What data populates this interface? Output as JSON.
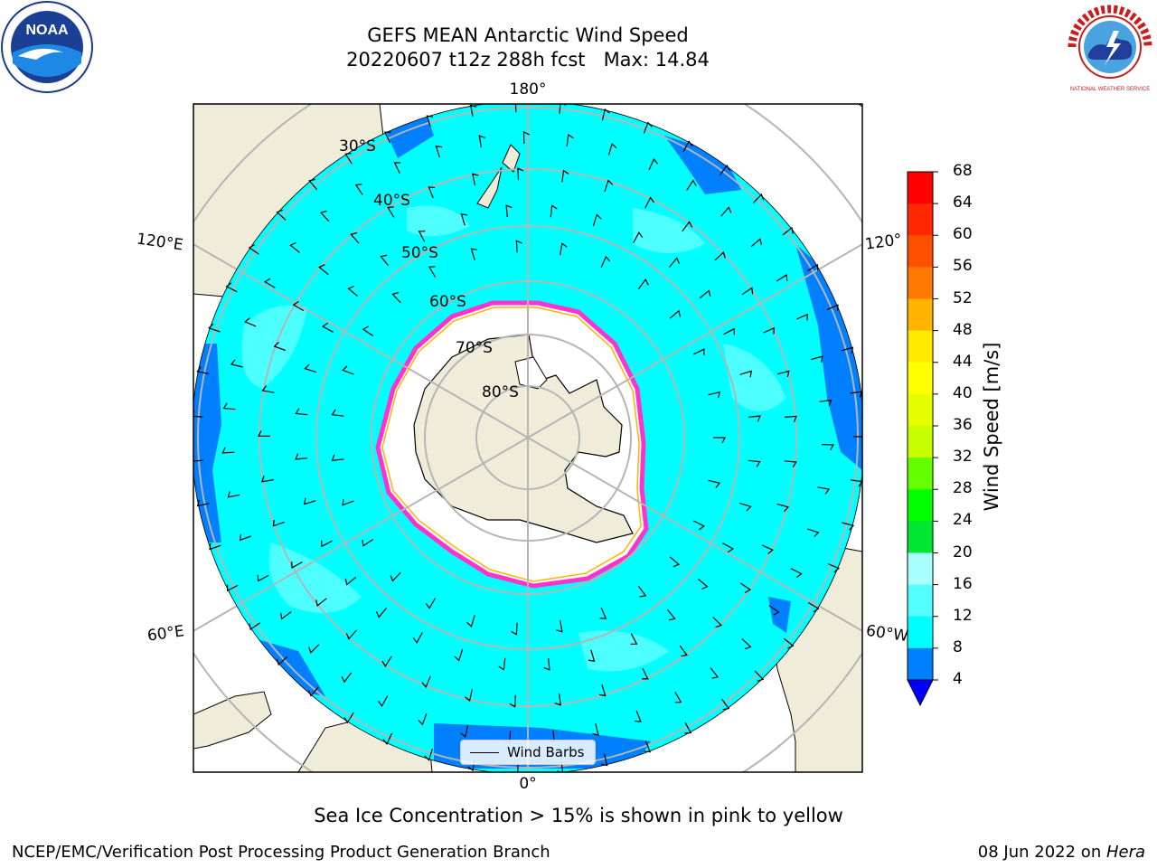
{
  "title_line1": "GEFS MEAN Antarctic Wind Speed",
  "title_line2": "20220607 t12z 288h fcst   Max: 14.84",
  "longitude_labels": {
    "top": "180°",
    "bottom": "0°",
    "left_upper": "120°E",
    "right_upper": "120°",
    "left_lower": "60°E",
    "right_lower": "60°W"
  },
  "latitude_labels": [
    "30°S",
    "40°S",
    "50°S",
    "60°S",
    "70°S",
    "80°S"
  ],
  "colorbar": {
    "label": "Wind Speed [m/s]",
    "ticks": [
      "68",
      "64",
      "60",
      "56",
      "52",
      "48",
      "44",
      "40",
      "36",
      "32",
      "28",
      "24",
      "20",
      "16",
      "12",
      "8",
      "4"
    ],
    "colors_top_to_bottom": [
      "#ff0000",
      "#ff2800",
      "#ff5000",
      "#ff7800",
      "#ff9600",
      "#ffb400",
      "#ffeb00",
      "#ffff00",
      "#e6ff00",
      "#c8ff00",
      "#64ff00",
      "#00ff00",
      "#00e632",
      "#55ff8c",
      "#aaffff",
      "#55ffff",
      "#00ffff",
      "#0080ff"
    ],
    "extend_color": "#0000ff"
  },
  "legend": {
    "label": "Wind Barbs"
  },
  "caption": "Sea Ice Concentration > 15% is shown in pink to yellow",
  "footer": {
    "left": "NCEP/EMC/Verification Post Processing Product Generation Branch",
    "right_prefix": "08 Jun 2022 on ",
    "right_machine": "Hera"
  },
  "logos": {
    "noaa": "NOAA",
    "nws": "NATIONAL WEATHER SERVICE"
  },
  "colors": {
    "land": "#efedda",
    "ocean_primary": "#00ffff",
    "ocean_light": "#55ffff",
    "ocean_low": "#0080ff",
    "grid": "#b5b5b5"
  }
}
